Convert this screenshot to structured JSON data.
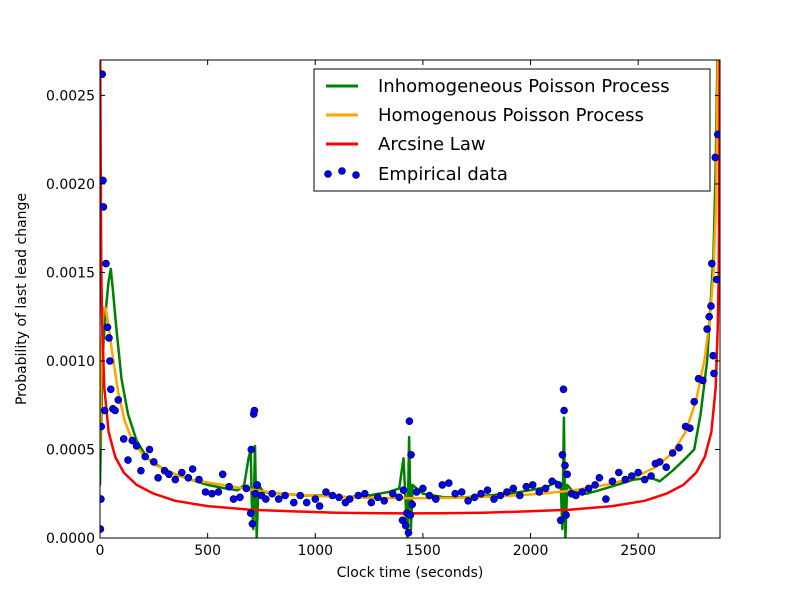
{
  "chart_data": {
    "type": "line",
    "title": "",
    "xlabel": "Clock time (seconds)",
    "ylabel": "Probability of last lead change",
    "xlim": [
      0,
      2880
    ],
    "ylim": [
      0,
      0.0027
    ],
    "x_ticks": [
      0,
      500,
      1000,
      1500,
      2000,
      2500
    ],
    "x_tick_labels": [
      "0",
      "500",
      "1000",
      "1500",
      "2000",
      "2500"
    ],
    "y_ticks": [
      0,
      0.0005,
      0.001,
      0.0015,
      0.002,
      0.0025
    ],
    "y_tick_labels": [
      "0.0000",
      "0.0005",
      "0.0010",
      "0.0015",
      "0.0020",
      "0.0025"
    ],
    "grid": false,
    "legend_position": "top-right",
    "series": [
      {
        "name": "Inhomogeneous Poisson Process",
        "kind": "line",
        "color": "#008000",
        "points": [
          [
            0,
            0.0003
          ],
          [
            8,
            0.0008
          ],
          [
            16,
            0.0011
          ],
          [
            28,
            0.0013
          ],
          [
            40,
            0.00145
          ],
          [
            50,
            0.00152
          ],
          [
            60,
            0.0014
          ],
          [
            75,
            0.0012
          ],
          [
            100,
            0.0009
          ],
          [
            130,
            0.0007
          ],
          [
            170,
            0.00055
          ],
          [
            220,
            0.00045
          ],
          [
            280,
            0.0004
          ],
          [
            350,
            0.00036
          ],
          [
            420,
            0.00033
          ],
          [
            500,
            0.0003
          ],
          [
            580,
            0.00028
          ],
          [
            640,
            0.00027
          ],
          [
            670,
            0.0003
          ],
          [
            690,
            0.00045
          ],
          [
            700,
            0.0005
          ],
          [
            705,
            0.0002
          ],
          [
            712,
            5e-05
          ],
          [
            720,
            0.00052
          ],
          [
            728,
            0.0
          ],
          [
            736,
            0.0003
          ],
          [
            760,
            0.00026
          ],
          [
            850,
            0.00025
          ],
          [
            950,
            0.00024
          ],
          [
            1050,
            0.00024
          ],
          [
            1150,
            0.00023
          ],
          [
            1250,
            0.00024
          ],
          [
            1340,
            0.00026
          ],
          [
            1390,
            0.00028
          ],
          [
            1410,
            0.00045
          ],
          [
            1420,
            0.0002
          ],
          [
            1428,
            0.0
          ],
          [
            1436,
            0.00057
          ],
          [
            1444,
            5e-05
          ],
          [
            1452,
            0.0003
          ],
          [
            1500,
            0.00025
          ],
          [
            1600,
            0.00023
          ],
          [
            1700,
            0.00023
          ],
          [
            1800,
            0.00024
          ],
          [
            1900,
            0.00025
          ],
          [
            2000,
            0.00027
          ],
          [
            2080,
            0.00029
          ],
          [
            2120,
            0.00032
          ],
          [
            2140,
            0.0003
          ],
          [
            2148,
            5e-05
          ],
          [
            2155,
            0.00068
          ],
          [
            2162,
            0.0
          ],
          [
            2170,
            0.0003
          ],
          [
            2200,
            0.00026
          ],
          [
            2260,
            0.00025
          ],
          [
            2320,
            0.00027
          ],
          [
            2400,
            0.0003
          ],
          [
            2480,
            0.00033
          ],
          [
            2560,
            0.00034
          ],
          [
            2600,
            0.00032
          ],
          [
            2660,
            0.00038
          ],
          [
            2720,
            0.00045
          ],
          [
            2760,
            0.0005
          ],
          [
            2790,
            0.0007
          ],
          [
            2820,
            0.001
          ],
          [
            2840,
            0.0014
          ],
          [
            2850,
            0.0016
          ],
          [
            2860,
            0.0021
          ],
          [
            2868,
            0.0027
          ]
        ]
      },
      {
        "name": "Homogenous Poisson Process",
        "kind": "line",
        "color": "#FFA500",
        "points": [
          [
            0,
            0.0005
          ],
          [
            8,
            0.0011
          ],
          [
            16,
            0.0013
          ],
          [
            25,
            0.0013
          ],
          [
            40,
            0.0012
          ],
          [
            60,
            0.00102
          ],
          [
            85,
            0.00082
          ],
          [
            115,
            0.00066
          ],
          [
            150,
            0.00055
          ],
          [
            200,
            0.00047
          ],
          [
            260,
            0.00041
          ],
          [
            330,
            0.00037
          ],
          [
            420,
            0.00033
          ],
          [
            520,
            0.00031
          ],
          [
            620,
            0.00029
          ],
          [
            720,
            0.00027
          ],
          [
            850,
            0.00025
          ],
          [
            1000,
            0.000238
          ],
          [
            1150,
            0.00023
          ],
          [
            1300,
            0.000226
          ],
          [
            1440,
            0.000224
          ],
          [
            1600,
            0.000226
          ],
          [
            1750,
            0.00023
          ],
          [
            1900,
            0.000238
          ],
          [
            2050,
            0.00025
          ],
          [
            2200,
            0.00027
          ],
          [
            2350,
            0.0003
          ],
          [
            2480,
            0.00034
          ],
          [
            2580,
            0.0004
          ],
          [
            2660,
            0.00048
          ],
          [
            2720,
            0.0006
          ],
          [
            2770,
            0.00078
          ],
          [
            2810,
            0.00102
          ],
          [
            2835,
            0.00127
          ],
          [
            2850,
            0.0015
          ],
          [
            2862,
            0.0019
          ],
          [
            2870,
            0.0027
          ]
        ]
      },
      {
        "name": "Arcsine Law",
        "kind": "line",
        "color": "#FF0000",
        "points": [
          [
            1,
            0.0027
          ],
          [
            2,
            0.0025
          ],
          [
            4,
            0.0019
          ],
          [
            6,
            0.0015
          ],
          [
            10,
            0.0012
          ],
          [
            20,
            0.00085
          ],
          [
            40,
            0.0006
          ],
          [
            70,
            0.00046
          ],
          [
            110,
            0.00037
          ],
          [
            170,
            0.0003
          ],
          [
            250,
            0.00025
          ],
          [
            350,
            0.00021
          ],
          [
            500,
            0.00018
          ],
          [
            700,
            0.00016
          ],
          [
            900,
            0.00015
          ],
          [
            1100,
            0.000143
          ],
          [
            1300,
            0.00014
          ],
          [
            1440,
            0.000139
          ],
          [
            1580,
            0.00014
          ],
          [
            1780,
            0.000143
          ],
          [
            1980,
            0.00015
          ],
          [
            2180,
            0.00016
          ],
          [
            2380,
            0.00018
          ],
          [
            2530,
            0.00021
          ],
          [
            2630,
            0.00025
          ],
          [
            2710,
            0.0003
          ],
          [
            2770,
            0.00037
          ],
          [
            2810,
            0.00046
          ],
          [
            2840,
            0.0006
          ],
          [
            2860,
            0.00085
          ],
          [
            2870,
            0.0012
          ],
          [
            2874,
            0.0015
          ],
          [
            2876,
            0.0019
          ],
          [
            2878,
            0.0025
          ],
          [
            2879,
            0.0027
          ]
        ]
      },
      {
        "name": "Empirical data",
        "kind": "scatter",
        "color": "#0000FF",
        "points": [
          [
            2,
            5e-05
          ],
          [
            4,
            0.00022
          ],
          [
            6,
            0.00063
          ],
          [
            10,
            0.00262
          ],
          [
            14,
            0.00202
          ],
          [
            16,
            0.00187
          ],
          [
            22,
            0.00072
          ],
          [
            28,
            0.00155
          ],
          [
            35,
            0.00119
          ],
          [
            42,
            0.00113
          ],
          [
            46,
            0.001
          ],
          [
            50,
            0.00084
          ],
          [
            60,
            0.00073
          ],
          [
            70,
            0.00072
          ],
          [
            85,
            0.00078
          ],
          [
            110,
            0.00056
          ],
          [
            130,
            0.00044
          ],
          [
            150,
            0.00055
          ],
          [
            170,
            0.00052
          ],
          [
            190,
            0.00038
          ],
          [
            210,
            0.00046
          ],
          [
            230,
            0.0005
          ],
          [
            250,
            0.00043
          ],
          [
            270,
            0.00034
          ],
          [
            300,
            0.00038
          ],
          [
            320,
            0.00036
          ],
          [
            350,
            0.00033
          ],
          [
            380,
            0.00037
          ],
          [
            410,
            0.00034
          ],
          [
            430,
            0.00039
          ],
          [
            460,
            0.00033
          ],
          [
            490,
            0.00026
          ],
          [
            520,
            0.00025
          ],
          [
            550,
            0.00026
          ],
          [
            570,
            0.00036
          ],
          [
            600,
            0.00029
          ],
          [
            620,
            0.00022
          ],
          [
            650,
            0.00023
          ],
          [
            680,
            0.00028
          ],
          [
            700,
            0.00014
          ],
          [
            703,
            0.0005
          ],
          [
            708,
            8e-05
          ],
          [
            714,
            0.0007
          ],
          [
            717,
            0.00072
          ],
          [
            722,
            0.00025
          ],
          [
            730,
            0.0003
          ],
          [
            750,
            0.00024
          ],
          [
            770,
            0.00022
          ],
          [
            800,
            0.00025
          ],
          [
            830,
            0.00022
          ],
          [
            860,
            0.00024
          ],
          [
            900,
            0.0002
          ],
          [
            930,
            0.00024
          ],
          [
            960,
            0.0002
          ],
          [
            1000,
            0.00022
          ],
          [
            1020,
            0.00018
          ],
          [
            1050,
            0.00026
          ],
          [
            1080,
            0.00024
          ],
          [
            1110,
            0.00023
          ],
          [
            1140,
            0.0002
          ],
          [
            1160,
            0.00022
          ],
          [
            1200,
            0.00024
          ],
          [
            1230,
            0.00025
          ],
          [
            1260,
            0.0002
          ],
          [
            1290,
            0.00023
          ],
          [
            1320,
            0.00021
          ],
          [
            1360,
            0.00025
          ],
          [
            1390,
            0.00023
          ],
          [
            1405,
            0.0001
          ],
          [
            1410,
            0.00027
          ],
          [
            1420,
            7e-05
          ],
          [
            1425,
            0.00014
          ],
          [
            1433,
            3e-05
          ],
          [
            1437,
            0.00066
          ],
          [
            1442,
            0.00013
          ],
          [
            1445,
            0.00047
          ],
          [
            1450,
            0.00019
          ],
          [
            1470,
            0.00026
          ],
          [
            1500,
            0.00028
          ],
          [
            1530,
            0.00024
          ],
          [
            1560,
            0.00022
          ],
          [
            1590,
            0.0003
          ],
          [
            1620,
            0.00031
          ],
          [
            1650,
            0.00025
          ],
          [
            1680,
            0.00026
          ],
          [
            1710,
            0.00021
          ],
          [
            1740,
            0.00023
          ],
          [
            1770,
            0.00025
          ],
          [
            1800,
            0.00027
          ],
          [
            1830,
            0.00022
          ],
          [
            1860,
            0.00024
          ],
          [
            1890,
            0.00026
          ],
          [
            1920,
            0.00028
          ],
          [
            1950,
            0.00024
          ],
          [
            1980,
            0.00029
          ],
          [
            2010,
            0.0003
          ],
          [
            2040,
            0.00026
          ],
          [
            2070,
            0.00028
          ],
          [
            2100,
            0.00032
          ],
          [
            2130,
            0.0003
          ],
          [
            2140,
            0.0001
          ],
          [
            2148,
            0.00047
          ],
          [
            2153,
            0.00084
          ],
          [
            2156,
            0.00072
          ],
          [
            2160,
            0.00041
          ],
          [
            2165,
            0.00013
          ],
          [
            2170,
            0.00036
          ],
          [
            2190,
            0.00025
          ],
          [
            2210,
            0.00024
          ],
          [
            2240,
            0.00026
          ],
          [
            2270,
            0.00028
          ],
          [
            2300,
            0.0003
          ],
          [
            2320,
            0.00034
          ],
          [
            2350,
            0.00022
          ],
          [
            2380,
            0.00032
          ],
          [
            2410,
            0.00037
          ],
          [
            2440,
            0.00033
          ],
          [
            2470,
            0.00035
          ],
          [
            2500,
            0.00037
          ],
          [
            2530,
            0.00033
          ],
          [
            2560,
            0.00035
          ],
          [
            2580,
            0.00042
          ],
          [
            2600,
            0.00043
          ],
          [
            2630,
            0.0004
          ],
          [
            2660,
            0.00048
          ],
          [
            2690,
            0.00051
          ],
          [
            2720,
            0.00063
          ],
          [
            2740,
            0.00062
          ],
          [
            2760,
            0.00077
          ],
          [
            2780,
            0.0009
          ],
          [
            2800,
            0.00089
          ],
          [
            2820,
            0.00118
          ],
          [
            2830,
            0.00125
          ],
          [
            2838,
            0.00131
          ],
          [
            2842,
            0.00155
          ],
          [
            2848,
            0.00103
          ],
          [
            2852,
            0.00093
          ],
          [
            2858,
            0.00215
          ],
          [
            2864,
            0.00146
          ],
          [
            2870,
            0.00228
          ]
        ]
      }
    ]
  }
}
